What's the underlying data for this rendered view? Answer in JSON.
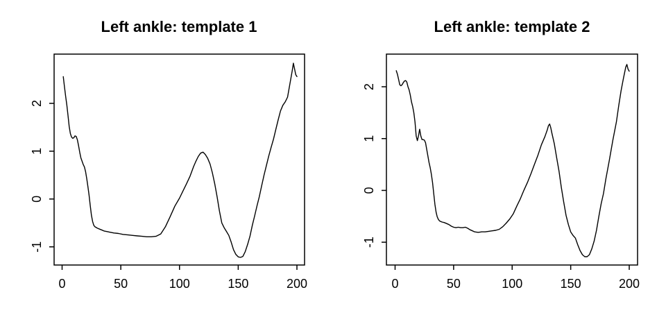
{
  "figure": {
    "background_color": "#ffffff",
    "line_color": "#000000",
    "text_color": "#000000"
  },
  "chart_data": [
    {
      "type": "line",
      "title": "Left ankle: template 1",
      "xlabel": "",
      "ylabel": "",
      "legend": null,
      "grid": false,
      "x_ticks": [
        0,
        50,
        100,
        150,
        200
      ],
      "y_ticks": [
        -1,
        0,
        1,
        2
      ],
      "xlim": [
        -6.8,
        206.5
      ],
      "ylim": [
        -1.38,
        3.03
      ],
      "line_color": "#000000",
      "x": [
        1,
        2,
        3,
        4,
        5,
        6,
        7,
        8,
        9,
        10,
        11,
        12,
        13,
        14,
        15,
        16,
        17,
        18,
        19,
        20,
        21,
        22,
        23,
        24,
        25,
        26,
        27,
        28,
        30,
        32,
        34,
        36,
        38,
        40,
        44,
        48,
        52,
        56,
        60,
        64,
        68,
        72,
        76,
        80,
        84,
        88,
        92,
        96,
        100,
        103,
        106,
        109,
        112,
        114,
        116,
        118,
        120,
        122,
        124,
        126,
        128,
        130,
        132,
        134,
        136,
        138,
        140,
        142,
        144,
        146,
        148,
        150,
        152,
        154,
        156,
        158,
        160,
        162,
        164,
        166,
        168,
        170,
        172,
        174,
        176,
        178,
        180,
        182,
        184,
        186,
        188,
        190,
        192,
        194,
        196,
        197,
        198,
        199,
        200
      ],
      "y": [
        2.56,
        2.35,
        2.15,
        1.97,
        1.75,
        1.52,
        1.37,
        1.3,
        1.27,
        1.28,
        1.32,
        1.31,
        1.24,
        1.12,
        0.98,
        0.86,
        0.79,
        0.72,
        0.67,
        0.57,
        0.42,
        0.26,
        0.08,
        -0.14,
        -0.34,
        -0.47,
        -0.55,
        -0.58,
        -0.61,
        -0.63,
        -0.65,
        -0.67,
        -0.68,
        -0.69,
        -0.71,
        -0.72,
        -0.74,
        -0.75,
        -0.76,
        -0.77,
        -0.78,
        -0.79,
        -0.79,
        -0.78,
        -0.73,
        -0.58,
        -0.37,
        -0.15,
        0.02,
        0.17,
        0.32,
        0.48,
        0.68,
        0.79,
        0.89,
        0.96,
        0.98,
        0.93,
        0.85,
        0.73,
        0.55,
        0.32,
        0.05,
        -0.25,
        -0.5,
        -0.6,
        -0.68,
        -0.76,
        -0.9,
        -1.06,
        -1.16,
        -1.21,
        -1.22,
        -1.2,
        -1.1,
        -0.95,
        -0.78,
        -0.55,
        -0.35,
        -0.14,
        0.05,
        0.28,
        0.5,
        0.7,
        0.9,
        1.08,
        1.25,
        1.45,
        1.65,
        1.84,
        1.96,
        2.03,
        2.13,
        2.4,
        2.68,
        2.84,
        2.72,
        2.6,
        2.56
      ]
    },
    {
      "type": "line",
      "title": "Left ankle: template 2",
      "xlabel": "",
      "ylabel": "",
      "legend": null,
      "grid": false,
      "x_ticks": [
        0,
        50,
        100,
        150,
        200
      ],
      "y_ticks": [
        -1,
        0,
        1,
        2
      ],
      "xlim": [
        -7.4,
        207.1
      ],
      "ylim": [
        -1.44,
        2.63
      ],
      "line_color": "#000000",
      "x": [
        1,
        2,
        3,
        4,
        5,
        6,
        7,
        8,
        9,
        10,
        11,
        12,
        13,
        14,
        15,
        16,
        17,
        18,
        19,
        20,
        21,
        22,
        23,
        24,
        25,
        26,
        27,
        28,
        29,
        30,
        31,
        32,
        33,
        34,
        35,
        36,
        37,
        38,
        40,
        42,
        44,
        46,
        48,
        50,
        52,
        54,
        56,
        58,
        60,
        62,
        64,
        66,
        68,
        71,
        74,
        77,
        80,
        83,
        86,
        89,
        92,
        95,
        98,
        101,
        104,
        107,
        110,
        113,
        116,
        119,
        122,
        125,
        128,
        130,
        131,
        132,
        133,
        134,
        136,
        138,
        140,
        142,
        144,
        146,
        148,
        150,
        152,
        154,
        156,
        158,
        160,
        162,
        164,
        166,
        168,
        170,
        172,
        174,
        176,
        178,
        180,
        183,
        186,
        189,
        191,
        193,
        195,
        197,
        198,
        199,
        200
      ],
      "y": [
        2.31,
        2.24,
        2.14,
        2.04,
        2.02,
        2.04,
        2.08,
        2.11,
        2.12,
        2.09,
        2.0,
        1.94,
        1.84,
        1.71,
        1.62,
        1.5,
        1.32,
        1.05,
        0.96,
        1.05,
        1.18,
        1.05,
        0.98,
        0.98,
        0.97,
        0.92,
        0.79,
        0.67,
        0.54,
        0.44,
        0.31,
        0.15,
        -0.06,
        -0.27,
        -0.42,
        -0.51,
        -0.56,
        -0.59,
        -0.61,
        -0.62,
        -0.64,
        -0.66,
        -0.69,
        -0.71,
        -0.72,
        -0.71,
        -0.72,
        -0.72,
        -0.71,
        -0.73,
        -0.76,
        -0.78,
        -0.8,
        -0.81,
        -0.8,
        -0.8,
        -0.79,
        -0.78,
        -0.77,
        -0.75,
        -0.7,
        -0.63,
        -0.55,
        -0.45,
        -0.3,
        -0.16,
        0.0,
        0.15,
        0.32,
        0.5,
        0.68,
        0.88,
        1.04,
        1.17,
        1.25,
        1.28,
        1.21,
        1.1,
        0.9,
        0.63,
        0.37,
        0.06,
        -0.22,
        -0.48,
        -0.66,
        -0.8,
        -0.87,
        -0.92,
        -1.05,
        -1.16,
        -1.24,
        -1.28,
        -1.28,
        -1.24,
        -1.13,
        -0.98,
        -0.77,
        -0.51,
        -0.26,
        -0.06,
        0.22,
        0.58,
        0.97,
        1.32,
        1.63,
        1.92,
        2.16,
        2.38,
        2.43,
        2.34,
        2.3
      ]
    }
  ]
}
